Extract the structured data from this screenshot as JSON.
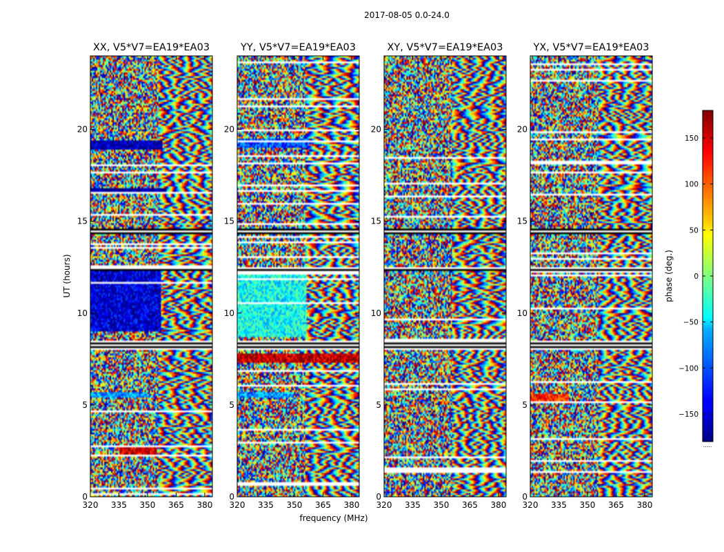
{
  "suptitle": "2017-08-05 0.0-24.0",
  "xlabel": "frequency (MHz)",
  "ylabel": "UT (hours)",
  "colorbar": {
    "label": "phase (deg.)",
    "ticks": [
      "150",
      "100",
      "50",
      "0",
      "−50",
      "−100",
      "−150"
    ],
    "tick_values": [
      150,
      100,
      50,
      0,
      -50,
      -100,
      -150
    ],
    "range": [
      -180,
      180
    ],
    "colormap": "jet",
    "footer": "....."
  },
  "chart_data": [
    {
      "type": "heatmap",
      "title": "XX, V5*V7=EA19*EA03",
      "xlabel": "frequency (MHz)",
      "ylabel": "UT (hours)",
      "x_ticks": [
        "320",
        "335",
        "350",
        "365",
        "380"
      ],
      "x_tick_values": [
        320,
        335,
        350,
        365,
        380
      ],
      "y_ticks": [
        "0",
        "5",
        "10",
        "15",
        "20"
      ],
      "y_tick_values": [
        0,
        5,
        10,
        15,
        20
      ],
      "xlim": [
        320,
        384
      ],
      "ylim": [
        0,
        24
      ],
      "value_range": [
        -180,
        180
      ],
      "coherent_regions": [
        {
          "ut": [
            9.0,
            12.3
          ],
          "freq": [
            320,
            357
          ],
          "phase_deg": -150
        },
        {
          "ut": [
            18.9,
            19.4
          ],
          "freq": [
            320,
            358
          ],
          "phase_deg": -165
        },
        {
          "ut": [
            16.5,
            16.8
          ],
          "freq": [
            320,
            360
          ],
          "phase_deg": -170
        },
        {
          "ut": [
            5.4,
            5.7
          ],
          "freq": [
            320,
            350
          ],
          "phase_deg": -80
        },
        {
          "ut": [
            2.2,
            2.8
          ],
          "freq": [
            335,
            355
          ],
          "phase_deg": 150
        }
      ],
      "blank_bands_ut": [
        [
          8.0,
          8.5
        ],
        [
          14.3,
          14.6
        ],
        [
          12.3,
          12.5
        ]
      ]
    },
    {
      "type": "heatmap",
      "title": "YY, V5*V7=EA19*EA03",
      "xlabel": "frequency (MHz)",
      "ylabel": "UT (hours)",
      "x_ticks": [
        "320",
        "335",
        "350",
        "365",
        "380"
      ],
      "x_tick_values": [
        320,
        335,
        350,
        365,
        380
      ],
      "y_ticks": [
        "0",
        "5",
        "10",
        "15",
        "20"
      ],
      "y_tick_values": [
        0,
        5,
        10,
        15,
        20
      ],
      "xlim": [
        320,
        384
      ],
      "ylim": [
        0,
        24
      ],
      "value_range": [
        -180,
        180
      ],
      "coherent_regions": [
        {
          "ut": [
            8.7,
            12.3
          ],
          "freq": [
            320,
            356
          ],
          "phase_deg": -40
        },
        {
          "ut": [
            19.0,
            19.5
          ],
          "freq": [
            320,
            358
          ],
          "phase_deg": -110
        },
        {
          "ut": [
            7.3,
            7.8
          ],
          "freq": [
            320,
            384
          ],
          "phase_deg": 160
        },
        {
          "ut": [
            5.4,
            5.7
          ],
          "freq": [
            320,
            350
          ],
          "phase_deg": -80
        }
      ],
      "blank_bands_ut": [
        [
          8.0,
          8.5
        ],
        [
          14.3,
          14.6
        ],
        [
          12.3,
          12.5
        ]
      ]
    },
    {
      "type": "heatmap",
      "title": "XY, V5*V7=EA19*EA03",
      "xlabel": "frequency (MHz)",
      "ylabel": "UT (hours)",
      "x_ticks": [
        "320",
        "335",
        "350",
        "365",
        "380"
      ],
      "x_tick_values": [
        320,
        335,
        350,
        365,
        380
      ],
      "y_ticks": [
        "0",
        "5",
        "10",
        "15",
        "20"
      ],
      "y_tick_values": [
        0,
        5,
        10,
        15,
        20
      ],
      "xlim": [
        320,
        384
      ],
      "ylim": [
        0,
        24
      ],
      "value_range": [
        -180,
        180
      ],
      "coherent_regions": [],
      "blank_bands_ut": [
        [
          8.0,
          8.5
        ],
        [
          14.3,
          14.6
        ],
        [
          12.3,
          12.5
        ]
      ]
    },
    {
      "type": "heatmap",
      "title": "YX, V5*V7=EA19*EA03",
      "xlabel": "frequency (MHz)",
      "ylabel": "UT (hours)",
      "x_ticks": [
        "320",
        "335",
        "350",
        "365",
        "380"
      ],
      "x_tick_values": [
        320,
        335,
        350,
        365,
        380
      ],
      "y_ticks": [
        "0",
        "5",
        "10",
        "15",
        "20"
      ],
      "y_tick_values": [
        0,
        5,
        10,
        15,
        20
      ],
      "xlim": [
        320,
        384
      ],
      "ylim": [
        0,
        24
      ],
      "value_range": [
        -180,
        180
      ],
      "coherent_regions": [
        {
          "ut": [
            5.2,
            5.6
          ],
          "freq": [
            320,
            340
          ],
          "phase_deg": 120
        }
      ],
      "blank_bands_ut": [
        [
          8.0,
          8.5
        ],
        [
          14.3,
          14.6
        ],
        [
          12.3,
          12.5
        ]
      ]
    }
  ]
}
